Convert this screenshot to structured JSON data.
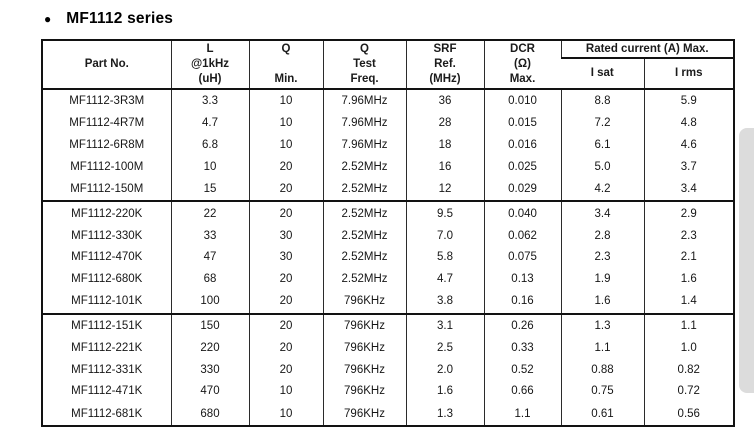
{
  "page": {
    "title": "MF1112 series"
  },
  "icons": {
    "bullet": "●"
  },
  "scrollbar": {
    "color": "#dcdcdc"
  },
  "table": {
    "rated_current_header": "Rated current (A) Max.",
    "columns": [
      {
        "key": "part-no",
        "label": "Part No."
      },
      {
        "key": "l-1khz",
        "label": "L\n@1kHz\n(uH)"
      },
      {
        "key": "q-min",
        "label": "Q\n\nMin."
      },
      {
        "key": "q-test-freq",
        "label": "Q\nTest\nFreq."
      },
      {
        "key": "srf",
        "label": "SRF\nRef.\n(MHz)"
      },
      {
        "key": "dcr",
        "label": "DCR\n(Ω)\nMax."
      },
      {
        "key": "i-sat",
        "label": "I sat"
      },
      {
        "key": "i-rms",
        "label": "I rms"
      }
    ],
    "rows": [
      {
        "cells": [
          "MF1112-3R3M",
          "3.3",
          "10",
          "7.96MHz",
          "36",
          "0.010",
          "8.8",
          "5.9"
        ],
        "group_end": false
      },
      {
        "cells": [
          "MF1112-4R7M",
          "4.7",
          "10",
          "7.96MHz",
          "28",
          "0.015",
          "7.2",
          "4.8"
        ],
        "group_end": false
      },
      {
        "cells": [
          "MF1112-6R8M",
          "6.8",
          "10",
          "7.96MHz",
          "18",
          "0.016",
          "6.1",
          "4.6"
        ],
        "group_end": false
      },
      {
        "cells": [
          "MF1112-100M",
          "10",
          "20",
          "2.52MHz",
          "16",
          "0.025",
          "5.0",
          "3.7"
        ],
        "group_end": false
      },
      {
        "cells": [
          "MF1112-150M",
          "15",
          "20",
          "2.52MHz",
          "12",
          "0.029",
          "4.2",
          "3.4"
        ],
        "group_end": true
      },
      {
        "cells": [
          "MF1112-220K",
          "22",
          "20",
          "2.52MHz",
          "9.5",
          "0.040",
          "3.4",
          "2.9"
        ],
        "group_end": false
      },
      {
        "cells": [
          "MF1112-330K",
          "33",
          "30",
          "2.52MHz",
          "7.0",
          "0.062",
          "2.8",
          "2.3"
        ],
        "group_end": false
      },
      {
        "cells": [
          "MF1112-470K",
          "47",
          "30",
          "2.52MHz",
          "5.8",
          "0.075",
          "2.3",
          "2.1"
        ],
        "group_end": false
      },
      {
        "cells": [
          "MF1112-680K",
          "68",
          "20",
          "2.52MHz",
          "4.7",
          "0.13",
          "1.9",
          "1.6"
        ],
        "group_end": false
      },
      {
        "cells": [
          "MF1112-101K",
          "100",
          "20",
          "796KHz",
          "3.8",
          "0.16",
          "1.6",
          "1.4"
        ],
        "group_end": true
      },
      {
        "cells": [
          "MF1112-151K",
          "150",
          "20",
          "796KHz",
          "3.1",
          "0.26",
          "1.3",
          "1.1"
        ],
        "group_end": false
      },
      {
        "cells": [
          "MF1112-221K",
          "220",
          "20",
          "796KHz",
          "2.5",
          "0.33",
          "1.1",
          "1.0"
        ],
        "group_end": false
      },
      {
        "cells": [
          "MF1112-331K",
          "330",
          "20",
          "796KHz",
          "2.0",
          "0.52",
          "0.88",
          "0.82"
        ],
        "group_end": false
      },
      {
        "cells": [
          "MF1112-471K",
          "470",
          "10",
          "796KHz",
          "1.6",
          "0.66",
          "0.75",
          "0.72"
        ],
        "group_end": false
      },
      {
        "cells": [
          "MF1112-681K",
          "680",
          "10",
          "796KHz",
          "1.3",
          "1.1",
          "0.61",
          "0.56"
        ],
        "group_end": false
      }
    ]
  }
}
